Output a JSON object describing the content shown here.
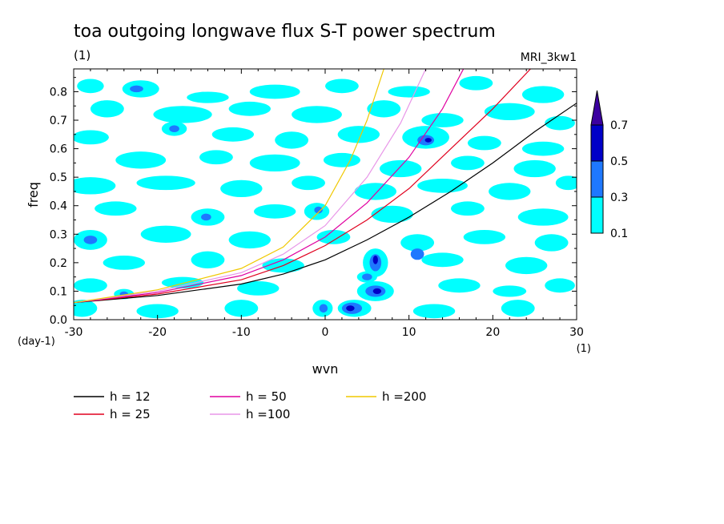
{
  "chart_data": {
    "type": "heatmap",
    "title": "toa outgoing longwave flux S-T power spectrum",
    "subtitle_left": "(1)",
    "subtitle_right": "MRI_3kw1",
    "xlabel": "wvn",
    "ylabel": "freq",
    "x_unit": "(1)",
    "y_unit": "(day-1)",
    "xlim": [
      -30,
      30
    ],
    "ylim": [
      0,
      0.88
    ],
    "xticks": [
      -30,
      -20,
      -10,
      0,
      10,
      20,
      30
    ],
    "xtick_labels": [
      "-30",
      "-20",
      "-10",
      "0",
      "10",
      "20",
      "30"
    ],
    "yticks": [
      0.0,
      0.1,
      0.2,
      0.3,
      0.4,
      0.5,
      0.6,
      0.7,
      0.8
    ],
    "ytick_labels": [
      "0.0",
      "0.1",
      "0.2",
      "0.3",
      "0.4",
      "0.5",
      "0.6",
      "0.7",
      "0.8"
    ],
    "colorbar": {
      "levels": [
        0.1,
        0.3,
        0.5,
        0.7
      ],
      "level_labels": [
        "0.1",
        "0.3",
        "0.5",
        "0.7"
      ],
      "colors": [
        "#00ffff",
        "#1e78ff",
        "#0000c8",
        "#3c00a0"
      ]
    },
    "contour_patches": [
      {
        "x": -28,
        "y": 0.82,
        "rx": 1.6,
        "ry": 0.025,
        "level": 0
      },
      {
        "x": -22,
        "y": 0.81,
        "rx": 2.2,
        "ry": 0.03,
        "level": 0
      },
      {
        "x": -22.5,
        "y": 0.81,
        "rx": 0.8,
        "ry": 0.012,
        "level": 1
      },
      {
        "x": -14,
        "y": 0.78,
        "rx": 2.5,
        "ry": 0.02,
        "level": 0
      },
      {
        "x": -6,
        "y": 0.8,
        "rx": 3.0,
        "ry": 0.025,
        "level": 0
      },
      {
        "x": 2,
        "y": 0.82,
        "rx": 2.0,
        "ry": 0.025,
        "level": 0
      },
      {
        "x": 10,
        "y": 0.8,
        "rx": 2.5,
        "ry": 0.02,
        "level": 0
      },
      {
        "x": 18,
        "y": 0.83,
        "rx": 2.0,
        "ry": 0.025,
        "level": 0
      },
      {
        "x": 26,
        "y": 0.79,
        "rx": 2.5,
        "ry": 0.03,
        "level": 0
      },
      {
        "x": -26,
        "y": 0.74,
        "rx": 2.0,
        "ry": 0.03,
        "level": 0
      },
      {
        "x": -17,
        "y": 0.72,
        "rx": 3.5,
        "ry": 0.03,
        "level": 0
      },
      {
        "x": -9,
        "y": 0.74,
        "rx": 2.5,
        "ry": 0.025,
        "level": 0
      },
      {
        "x": -1,
        "y": 0.72,
        "rx": 3.0,
        "ry": 0.03,
        "level": 0
      },
      {
        "x": 7,
        "y": 0.74,
        "rx": 2.0,
        "ry": 0.03,
        "level": 0
      },
      {
        "x": 14,
        "y": 0.7,
        "rx": 2.5,
        "ry": 0.025,
        "level": 0
      },
      {
        "x": 22,
        "y": 0.73,
        "rx": 3.0,
        "ry": 0.03,
        "level": 0
      },
      {
        "x": 28,
        "y": 0.69,
        "rx": 1.8,
        "ry": 0.025,
        "level": 0
      },
      {
        "x": -18,
        "y": 0.67,
        "rx": 1.5,
        "ry": 0.025,
        "level": 0
      },
      {
        "x": -18,
        "y": 0.67,
        "rx": 0.6,
        "ry": 0.012,
        "level": 1
      },
      {
        "x": -28,
        "y": 0.64,
        "rx": 2.2,
        "ry": 0.025,
        "level": 0
      },
      {
        "x": -11,
        "y": 0.65,
        "rx": 2.5,
        "ry": 0.025,
        "level": 0
      },
      {
        "x": -4,
        "y": 0.63,
        "rx": 2.0,
        "ry": 0.03,
        "level": 0
      },
      {
        "x": 4,
        "y": 0.65,
        "rx": 2.5,
        "ry": 0.03,
        "level": 0
      },
      {
        "x": 12,
        "y": 0.64,
        "rx": 2.8,
        "ry": 0.04,
        "level": 0
      },
      {
        "x": 12,
        "y": 0.63,
        "rx": 1.0,
        "ry": 0.018,
        "level": 1
      },
      {
        "x": 12.3,
        "y": 0.63,
        "rx": 0.4,
        "ry": 0.008,
        "level": 2
      },
      {
        "x": 19,
        "y": 0.62,
        "rx": 2.0,
        "ry": 0.025,
        "level": 0
      },
      {
        "x": 26,
        "y": 0.6,
        "rx": 2.5,
        "ry": 0.025,
        "level": 0
      },
      {
        "x": -22,
        "y": 0.56,
        "rx": 3.0,
        "ry": 0.03,
        "level": 0
      },
      {
        "x": -13,
        "y": 0.57,
        "rx": 2.0,
        "ry": 0.025,
        "level": 0
      },
      {
        "x": -6,
        "y": 0.55,
        "rx": 3.0,
        "ry": 0.03,
        "level": 0
      },
      {
        "x": 2,
        "y": 0.56,
        "rx": 2.2,
        "ry": 0.025,
        "level": 0
      },
      {
        "x": 9,
        "y": 0.53,
        "rx": 2.5,
        "ry": 0.03,
        "level": 0
      },
      {
        "x": 17,
        "y": 0.55,
        "rx": 2.0,
        "ry": 0.025,
        "level": 0
      },
      {
        "x": 25,
        "y": 0.53,
        "rx": 2.5,
        "ry": 0.03,
        "level": 0
      },
      {
        "x": -28,
        "y": 0.47,
        "rx": 3.0,
        "ry": 0.03,
        "level": 0
      },
      {
        "x": -19,
        "y": 0.48,
        "rx": 3.5,
        "ry": 0.025,
        "level": 0
      },
      {
        "x": -10,
        "y": 0.46,
        "rx": 2.5,
        "ry": 0.03,
        "level": 0
      },
      {
        "x": -2,
        "y": 0.48,
        "rx": 2.0,
        "ry": 0.025,
        "level": 0
      },
      {
        "x": 6,
        "y": 0.45,
        "rx": 2.5,
        "ry": 0.03,
        "level": 0
      },
      {
        "x": 14,
        "y": 0.47,
        "rx": 3.0,
        "ry": 0.025,
        "level": 0
      },
      {
        "x": 22,
        "y": 0.45,
        "rx": 2.5,
        "ry": 0.03,
        "level": 0
      },
      {
        "x": 29,
        "y": 0.48,
        "rx": 1.5,
        "ry": 0.025,
        "level": 0
      },
      {
        "x": -25,
        "y": 0.39,
        "rx": 2.5,
        "ry": 0.025,
        "level": 0
      },
      {
        "x": -14,
        "y": 0.36,
        "rx": 2.0,
        "ry": 0.03,
        "level": 0
      },
      {
        "x": -14.2,
        "y": 0.36,
        "rx": 0.6,
        "ry": 0.012,
        "level": 1
      },
      {
        "x": -6,
        "y": 0.38,
        "rx": 2.5,
        "ry": 0.025,
        "level": 0
      },
      {
        "x": -1,
        "y": 0.38,
        "rx": 1.5,
        "ry": 0.03,
        "level": 0
      },
      {
        "x": -0.8,
        "y": 0.385,
        "rx": 0.5,
        "ry": 0.012,
        "level": 1
      },
      {
        "x": 8,
        "y": 0.37,
        "rx": 2.5,
        "ry": 0.03,
        "level": 0
      },
      {
        "x": 17,
        "y": 0.39,
        "rx": 2.0,
        "ry": 0.025,
        "level": 0
      },
      {
        "x": 26,
        "y": 0.36,
        "rx": 3.0,
        "ry": 0.03,
        "level": 0
      },
      {
        "x": -28,
        "y": 0.28,
        "rx": 2.0,
        "ry": 0.035,
        "level": 0
      },
      {
        "x": -28,
        "y": 0.28,
        "rx": 0.8,
        "ry": 0.015,
        "level": 1
      },
      {
        "x": -19,
        "y": 0.3,
        "rx": 3.0,
        "ry": 0.03,
        "level": 0
      },
      {
        "x": -9,
        "y": 0.28,
        "rx": 2.5,
        "ry": 0.03,
        "level": 0
      },
      {
        "x": 1,
        "y": 0.29,
        "rx": 2.0,
        "ry": 0.025,
        "level": 0
      },
      {
        "x": 11,
        "y": 0.27,
        "rx": 2.0,
        "ry": 0.03,
        "level": 0
      },
      {
        "x": 11,
        "y": 0.23,
        "rx": 0.8,
        "ry": 0.02,
        "level": 1
      },
      {
        "x": 19,
        "y": 0.29,
        "rx": 2.5,
        "ry": 0.025,
        "level": 0
      },
      {
        "x": 27,
        "y": 0.27,
        "rx": 2.0,
        "ry": 0.03,
        "level": 0
      },
      {
        "x": -24,
        "y": 0.2,
        "rx": 2.5,
        "ry": 0.025,
        "level": 0
      },
      {
        "x": -14,
        "y": 0.21,
        "rx": 2.0,
        "ry": 0.03,
        "level": 0
      },
      {
        "x": -5,
        "y": 0.19,
        "rx": 2.5,
        "ry": 0.025,
        "level": 0
      },
      {
        "x": 6,
        "y": 0.2,
        "rx": 1.5,
        "ry": 0.05,
        "level": 0
      },
      {
        "x": 6,
        "y": 0.2,
        "rx": 0.7,
        "ry": 0.03,
        "level": 1
      },
      {
        "x": 6,
        "y": 0.21,
        "rx": 0.3,
        "ry": 0.015,
        "level": 2
      },
      {
        "x": 14,
        "y": 0.21,
        "rx": 2.5,
        "ry": 0.025,
        "level": 0
      },
      {
        "x": 24,
        "y": 0.19,
        "rx": 2.5,
        "ry": 0.03,
        "level": 0
      },
      {
        "x": -28,
        "y": 0.12,
        "rx": 2.0,
        "ry": 0.025,
        "level": 0
      },
      {
        "x": -17,
        "y": 0.13,
        "rx": 2.5,
        "ry": 0.02,
        "level": 0
      },
      {
        "x": -8,
        "y": 0.11,
        "rx": 2.5,
        "ry": 0.025,
        "level": 0
      },
      {
        "x": 5,
        "y": 0.15,
        "rx": 1.2,
        "ry": 0.02,
        "level": 0
      },
      {
        "x": 5,
        "y": 0.15,
        "rx": 0.6,
        "ry": 0.012,
        "level": 1
      },
      {
        "x": 6,
        "y": 0.1,
        "rx": 2.2,
        "ry": 0.035,
        "level": 0
      },
      {
        "x": 6,
        "y": 0.1,
        "rx": 1.2,
        "ry": 0.02,
        "level": 1
      },
      {
        "x": 6.2,
        "y": 0.1,
        "rx": 0.5,
        "ry": 0.01,
        "level": 2
      },
      {
        "x": 16,
        "y": 0.12,
        "rx": 2.5,
        "ry": 0.025,
        "level": 0
      },
      {
        "x": 22,
        "y": 0.1,
        "rx": 2.0,
        "ry": 0.02,
        "level": 0
      },
      {
        "x": 28,
        "y": 0.12,
        "rx": 1.8,
        "ry": 0.025,
        "level": 0
      },
      {
        "x": -24,
        "y": 0.09,
        "rx": 1.2,
        "ry": 0.018,
        "level": 0
      },
      {
        "x": -24,
        "y": 0.09,
        "rx": 0.5,
        "ry": 0.009,
        "level": 1
      },
      {
        "x": -29,
        "y": 0.04,
        "rx": 1.8,
        "ry": 0.03,
        "level": 0
      },
      {
        "x": -20,
        "y": 0.03,
        "rx": 2.5,
        "ry": 0.025,
        "level": 0
      },
      {
        "x": -10,
        "y": 0.04,
        "rx": 2.0,
        "ry": 0.03,
        "level": 0
      },
      {
        "x": -0.3,
        "y": 0.04,
        "rx": 1.2,
        "ry": 0.03,
        "level": 0
      },
      {
        "x": -0.2,
        "y": 0.04,
        "rx": 0.5,
        "ry": 0.015,
        "level": 1
      },
      {
        "x": 3.5,
        "y": 0.04,
        "rx": 2.0,
        "ry": 0.03,
        "level": 0
      },
      {
        "x": 3.2,
        "y": 0.04,
        "rx": 1.2,
        "ry": 0.02,
        "level": 1
      },
      {
        "x": 3.0,
        "y": 0.04,
        "rx": 0.5,
        "ry": 0.01,
        "level": 2
      },
      {
        "x": 13,
        "y": 0.03,
        "rx": 2.5,
        "ry": 0.025,
        "level": 0
      },
      {
        "x": 23,
        "y": 0.04,
        "rx": 2.0,
        "ry": 0.03,
        "level": 0
      }
    ],
    "series": [
      {
        "name": "h = 12",
        "color": "#000000",
        "x": [
          -30,
          -20,
          -10,
          -5,
          0,
          5,
          10,
          15,
          20,
          25,
          30
        ],
        "y": [
          0.06,
          0.085,
          0.125,
          0.16,
          0.21,
          0.28,
          0.36,
          0.45,
          0.55,
          0.66,
          0.76
        ]
      },
      {
        "name": "h = 25",
        "color": "#e0001e",
        "x": [
          -30,
          -20,
          -10,
          -5,
          0,
          5,
          10,
          15,
          20,
          24.5
        ],
        "y": [
          0.06,
          0.09,
          0.14,
          0.19,
          0.26,
          0.35,
          0.46,
          0.6,
          0.74,
          0.88
        ]
      },
      {
        "name": "h = 50",
        "color": "#e000a0",
        "x": [
          -30,
          -20,
          -10,
          -5,
          0,
          5,
          10,
          14,
          16.5
        ],
        "y": [
          0.06,
          0.095,
          0.155,
          0.21,
          0.29,
          0.41,
          0.57,
          0.74,
          0.88
        ]
      },
      {
        "name": "h =100",
        "color": "#e896e8",
        "x": [
          -30,
          -20,
          -10,
          -5,
          0,
          5,
          9,
          12
        ],
        "y": [
          0.06,
          0.1,
          0.165,
          0.23,
          0.33,
          0.5,
          0.69,
          0.88
        ]
      },
      {
        "name": "h =200",
        "color": "#f0c800",
        "x": [
          -30,
          -20,
          -10,
          -5,
          0,
          3,
          5,
          7
        ],
        "y": [
          0.06,
          0.105,
          0.18,
          0.255,
          0.4,
          0.56,
          0.7,
          0.88
        ]
      }
    ]
  }
}
